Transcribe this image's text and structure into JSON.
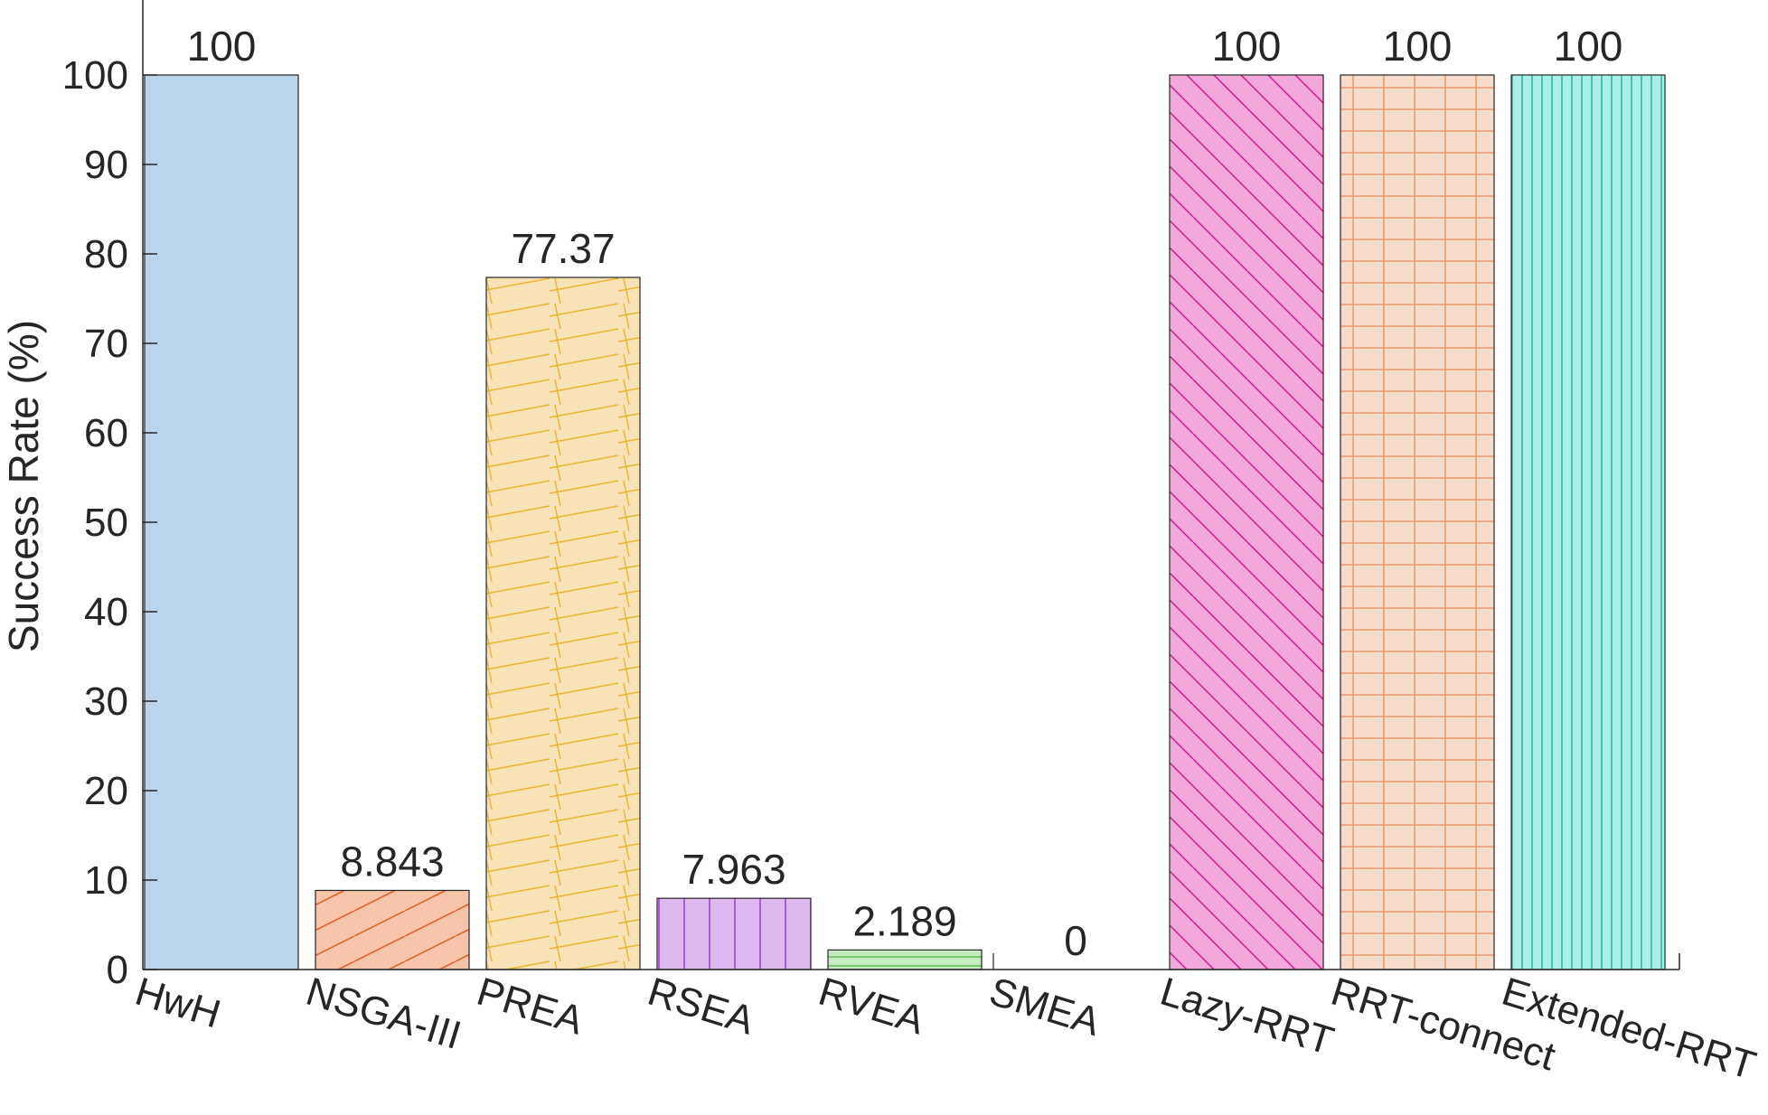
{
  "chart_data": {
    "type": "bar",
    "categories": [
      "HwH",
      "NSGA-III",
      "PREA",
      "RSEA",
      "RVEA",
      "SMEA",
      "Lazy-RRT",
      "RRT-connect",
      "Extended-RRT"
    ],
    "values": [
      100,
      8.843,
      77.37,
      7.963,
      2.189,
      0,
      100,
      100,
      100
    ],
    "value_labels": [
      "100",
      "8.843",
      "77.37",
      "7.963",
      "2.189",
      "0",
      "100",
      "100",
      "100"
    ],
    "title": "",
    "xlabel": "",
    "ylabel": "Success Rate (%)",
    "ylim": [
      0,
      100
    ],
    "yticks": [
      "0",
      "10",
      "20",
      "30",
      "40",
      "50",
      "60",
      "70",
      "80",
      "90",
      "100"
    ],
    "grid": false,
    "bar_styles": [
      {
        "fill": "#bad4ea",
        "line": "#bad4ea",
        "pattern": "none"
      },
      {
        "fill": "#f6c4a8",
        "line": "#e0602a",
        "pattern": "diagonal-up"
      },
      {
        "fill": "#f8e3b6",
        "line": "#eab52e",
        "pattern": "skewed-grid"
      },
      {
        "fill": "#dcbaf0",
        "line": "#9c3ed6",
        "pattern": "vertical"
      },
      {
        "fill": "#c5eac0",
        "line": "#54b04a",
        "pattern": "horizontal"
      },
      {
        "fill": "#eeeeee",
        "line": "#888888",
        "pattern": "none"
      },
      {
        "fill": "#f2a8d8",
        "line": "#d0158e",
        "pattern": "diagonal-down"
      },
      {
        "fill": "#f6dccc",
        "line": "#e89058",
        "pattern": "grid"
      },
      {
        "fill": "#a8f0e6",
        "line": "#16a898",
        "pattern": "vertical-dense"
      }
    ]
  }
}
